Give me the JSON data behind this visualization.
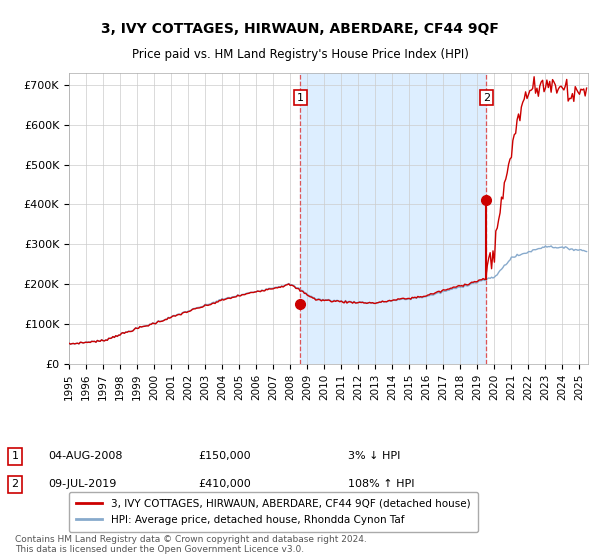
{
  "title": "3, IVY COTTAGES, HIRWAUN, ABERDARE, CF44 9QF",
  "subtitle": "Price paid vs. HM Land Registry's House Price Index (HPI)",
  "ylabel_ticks": [
    "£0",
    "£100K",
    "£200K",
    "£300K",
    "£400K",
    "£500K",
    "£600K",
    "£700K"
  ],
  "ytick_values": [
    0,
    100000,
    200000,
    300000,
    400000,
    500000,
    600000,
    700000
  ],
  "ylim": [
    0,
    730000
  ],
  "xlim_start": 1995.0,
  "xlim_end": 2025.5,
  "hpi_color": "#88aacc",
  "price_color": "#cc0000",
  "dashed_color": "#dd4444",
  "shade_color": "#ddeeff",
  "background_color": "#ffffff",
  "grid_color": "#cccccc",
  "legend_line1": "3, IVY COTTAGES, HIRWAUN, ABERDARE, CF44 9QF (detached house)",
  "legend_line2": "HPI: Average price, detached house, Rhondda Cynon Taf",
  "sale1_label": "1",
  "sale1_date": "04-AUG-2008",
  "sale1_price": "£150,000",
  "sale1_hpi": "3% ↓ HPI",
  "sale1_x": 2008.59,
  "sale1_y": 150000,
  "sale2_label": "2",
  "sale2_date": "09-JUL-2019",
  "sale2_price": "£410,000",
  "sale2_hpi": "108% ↑ HPI",
  "sale2_x": 2019.52,
  "sale2_y": 410000,
  "footer": "Contains HM Land Registry data © Crown copyright and database right 2024.\nThis data is licensed under the Open Government Licence v3.0.",
  "vline1_x": 2008.59,
  "vline2_x": 2019.52
}
